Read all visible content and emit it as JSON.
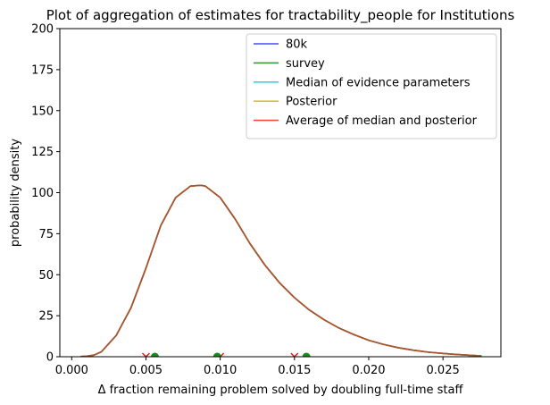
{
  "chart_data": {
    "type": "line",
    "title": "Plot of aggregation of estimates for tractability_people for Institutions",
    "xlabel": "Δ fraction remaining problem solved by doubling full-time staff",
    "ylabel": "probability density",
    "xlim": [
      -0.0008,
      0.0289
    ],
    "ylim": [
      0,
      200
    ],
    "xticks": [
      0.0,
      0.005,
      0.01,
      0.015,
      0.02,
      0.025
    ],
    "xtick_labels": [
      "0.000",
      "0.005",
      "0.010",
      "0.015",
      "0.020",
      "0.025"
    ],
    "yticks": [
      0,
      25,
      50,
      75,
      100,
      125,
      150,
      175,
      200
    ],
    "ytick_labels": [
      "0",
      "25",
      "50",
      "75",
      "100",
      "125",
      "150",
      "175",
      "200"
    ],
    "grid": false,
    "legend_position": "upper-right",
    "x": [
      0.0006,
      0.001,
      0.0015,
      0.002,
      0.003,
      0.004,
      0.005,
      0.006,
      0.007,
      0.008,
      0.0087,
      0.009,
      0.01,
      0.011,
      0.012,
      0.013,
      0.014,
      0.015,
      0.016,
      0.017,
      0.018,
      0.019,
      0.02,
      0.021,
      0.022,
      0.023,
      0.024,
      0.025,
      0.026,
      0.027,
      0.0276
    ],
    "series": [
      {
        "name": "80k",
        "color": "#4a4aff",
        "values": [
          0.1,
          0.3,
          1.0,
          3.0,
          13,
          30,
          54,
          80,
          97,
          104,
          104.5,
          104,
          97,
          84,
          69,
          56,
          45,
          36,
          28.5,
          22.5,
          17.5,
          13.5,
          10,
          7.5,
          5.5,
          4,
          2.8,
          2,
          1.3,
          0.8,
          0.5
        ]
      },
      {
        "name": "survey",
        "color": "#3a9a3a",
        "values": [
          0.1,
          0.3,
          1.0,
          3.0,
          13,
          30,
          54,
          80,
          97,
          104,
          104.5,
          104,
          97,
          84,
          69,
          56,
          45,
          36,
          28.5,
          22.5,
          17.5,
          13.5,
          10,
          7.5,
          5.5,
          4,
          2.8,
          2,
          1.3,
          0.8,
          0.5
        ]
      },
      {
        "name": "Median of evidence parameters",
        "color": "#3ad4d4",
        "values": [
          0.1,
          0.3,
          1.0,
          3.0,
          13,
          30,
          54,
          80,
          97,
          104,
          104.5,
          104,
          97,
          84,
          69,
          56,
          45,
          36,
          28.5,
          22.5,
          17.5,
          13.5,
          10,
          7.5,
          5.5,
          4,
          2.8,
          2,
          1.3,
          0.8,
          0.5
        ]
      },
      {
        "name": "Posterior",
        "color": "#d4c43a",
        "values": [
          0.1,
          0.3,
          1.0,
          3.0,
          13,
          30,
          54,
          80,
          97,
          104,
          104.5,
          104,
          97,
          84,
          69,
          56,
          45,
          36,
          28.5,
          22.5,
          17.5,
          13.5,
          10,
          7.5,
          5.5,
          4,
          2.8,
          2,
          1.3,
          0.8,
          0.5
        ]
      },
      {
        "name": "Average of median and posterior",
        "color": "#ff4a3a",
        "values": [
          0.1,
          0.3,
          1.0,
          3.0,
          13,
          30,
          54,
          80,
          97,
          104,
          104.5,
          104,
          97,
          84,
          69,
          56,
          45,
          36,
          28.5,
          22.5,
          17.5,
          13.5,
          10,
          7.5,
          5.5,
          4,
          2.8,
          2,
          1.3,
          0.8,
          0.5
        ]
      }
    ],
    "visible_curve_color": "#a0522d",
    "markers": [
      {
        "shape": "x",
        "color": "#e02020",
        "x": 0.005,
        "y": 0
      },
      {
        "shape": "x",
        "color": "#e02020",
        "x": 0.01,
        "y": 0
      },
      {
        "shape": "x",
        "color": "#e02020",
        "x": 0.015,
        "y": 0
      },
      {
        "shape": "circle",
        "color": "#1a8a1a",
        "x": 0.0056,
        "y": 0
      },
      {
        "shape": "circle",
        "color": "#1a8a1a",
        "x": 0.0098,
        "y": 0
      },
      {
        "shape": "circle",
        "color": "#1a8a1a",
        "x": 0.0158,
        "y": 0
      }
    ]
  }
}
